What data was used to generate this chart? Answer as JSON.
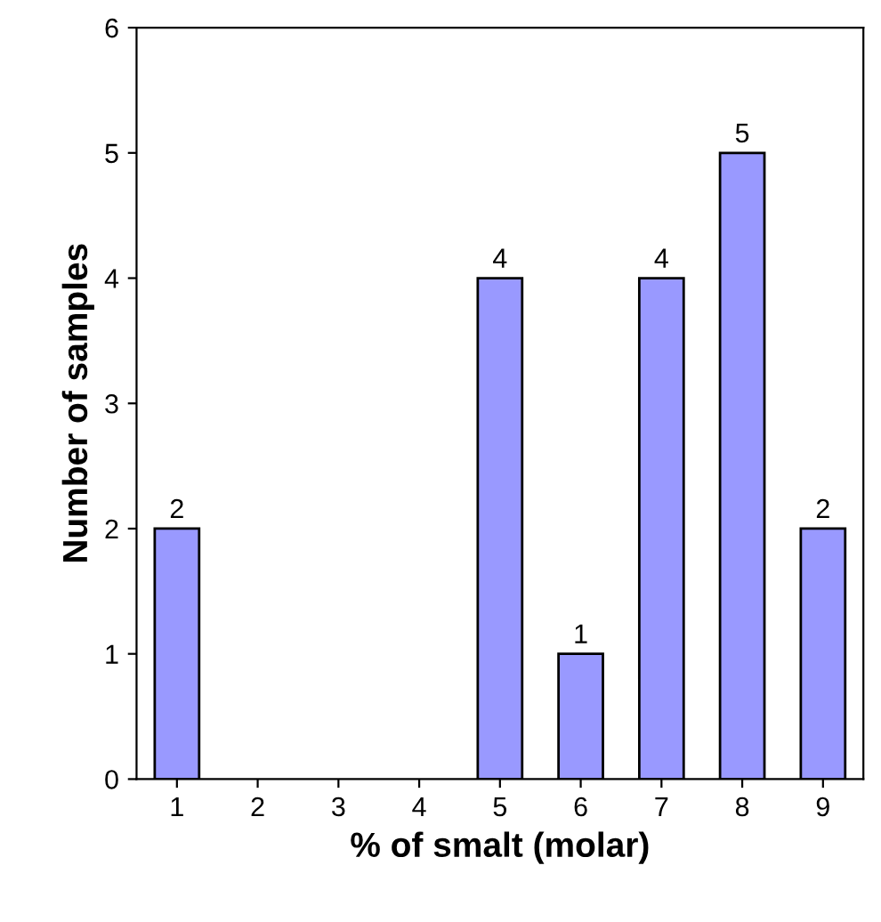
{
  "chart_data": {
    "type": "bar",
    "xlabel": "% of smalt (molar)",
    "ylabel": "Number of samples",
    "categories": [
      "1",
      "2",
      "3",
      "4",
      "5",
      "6",
      "7",
      "8",
      "9"
    ],
    "values": [
      2,
      0,
      0,
      0,
      4,
      1,
      4,
      5,
      2
    ],
    "value_labels": [
      "2",
      null,
      null,
      null,
      "4",
      "1",
      "4",
      "5",
      "2"
    ],
    "color": "#9999ff",
    "ylim": [
      0,
      6
    ],
    "yticks": [
      0,
      1,
      2,
      3,
      4,
      5,
      6
    ],
    "grid": false,
    "legend": false
  }
}
